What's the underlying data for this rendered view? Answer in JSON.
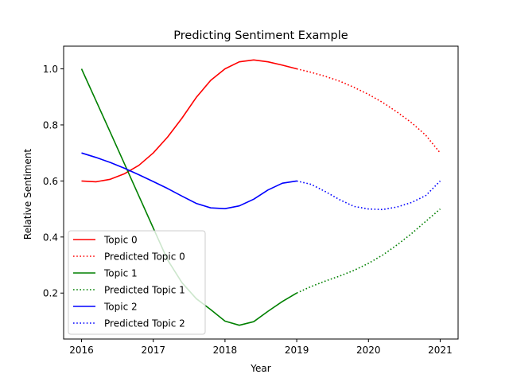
{
  "chart_data": {
    "type": "line",
    "title": "Predicting Sentiment Example",
    "xlabel": "Year",
    "ylabel": "Relative Sentiment",
    "xlim": [
      2015.75,
      2021.25
    ],
    "ylim": [
      0.036,
      1.081
    ],
    "xticks": [
      2016,
      2017,
      2018,
      2019,
      2020,
      2021
    ],
    "yticks": [
      0.2,
      0.4,
      0.6,
      0.8,
      1.0
    ],
    "ytick_labels": [
      "0.2",
      "0.4",
      "0.6",
      "0.8",
      "1.0"
    ],
    "grid": false,
    "legend_position": "lower-left",
    "series": [
      {
        "name": "Topic 0",
        "color": "#ff0000",
        "style": "solid",
        "x": [
          2016.0,
          2016.2,
          2016.4,
          2016.6,
          2016.8,
          2017.0,
          2017.2,
          2017.4,
          2017.6,
          2017.8,
          2018.0,
          2018.2,
          2018.4,
          2018.6,
          2018.8,
          2019.0
        ],
        "y": [
          0.6,
          0.597,
          0.606,
          0.626,
          0.656,
          0.7,
          0.757,
          0.824,
          0.898,
          0.959,
          1.0,
          1.025,
          1.032,
          1.025,
          1.013,
          1.0
        ]
      },
      {
        "name": "Predicted Topic 0",
        "color": "#ff0000",
        "style": "dotted",
        "x": [
          2019.0,
          2019.2,
          2019.4,
          2019.6,
          2019.8,
          2020.0,
          2020.2,
          2020.4,
          2020.6,
          2020.8,
          2021.0
        ],
        "y": [
          1.0,
          0.988,
          0.973,
          0.956,
          0.934,
          0.909,
          0.88,
          0.846,
          0.808,
          0.763,
          0.7
        ]
      },
      {
        "name": "Topic 1",
        "color": "#008000",
        "style": "solid",
        "x": [
          2016.0,
          2016.2,
          2016.4,
          2016.6,
          2016.8,
          2017.0,
          2017.2,
          2017.4,
          2017.6,
          2017.8,
          2018.0,
          2018.2,
          2018.4,
          2018.6,
          2018.8,
          2019.0
        ],
        "y": [
          1.0,
          0.887,
          0.774,
          0.66,
          0.546,
          0.432,
          0.318,
          0.237,
          0.18,
          0.141,
          0.1,
          0.085,
          0.098,
          0.135,
          0.17,
          0.2
        ]
      },
      {
        "name": "Predicted Topic 1",
        "color": "#008000",
        "style": "dotted",
        "x": [
          2019.0,
          2019.2,
          2019.4,
          2019.6,
          2019.8,
          2020.0,
          2020.2,
          2020.4,
          2020.6,
          2020.8,
          2021.0
        ],
        "y": [
          0.2,
          0.223,
          0.243,
          0.261,
          0.281,
          0.306,
          0.336,
          0.372,
          0.412,
          0.456,
          0.5
        ]
      },
      {
        "name": "Topic 2",
        "color": "#0000ff",
        "style": "solid",
        "x": [
          2016.0,
          2016.2,
          2016.4,
          2016.6,
          2016.8,
          2017.0,
          2017.2,
          2017.4,
          2017.6,
          2017.8,
          2018.0,
          2018.2,
          2018.4,
          2018.6,
          2018.8,
          2019.0
        ],
        "y": [
          0.7,
          0.684,
          0.666,
          0.645,
          0.622,
          0.598,
          0.573,
          0.546,
          0.52,
          0.504,
          0.501,
          0.511,
          0.535,
          0.568,
          0.592,
          0.6
        ]
      },
      {
        "name": "Predicted Topic 2",
        "color": "#0000ff",
        "style": "dotted",
        "x": [
          2019.0,
          2019.2,
          2019.4,
          2019.6,
          2019.8,
          2020.0,
          2020.2,
          2020.4,
          2020.6,
          2020.8,
          2021.0
        ],
        "y": [
          0.6,
          0.588,
          0.562,
          0.533,
          0.509,
          0.5,
          0.498,
          0.507,
          0.523,
          0.548,
          0.6
        ]
      }
    ]
  }
}
